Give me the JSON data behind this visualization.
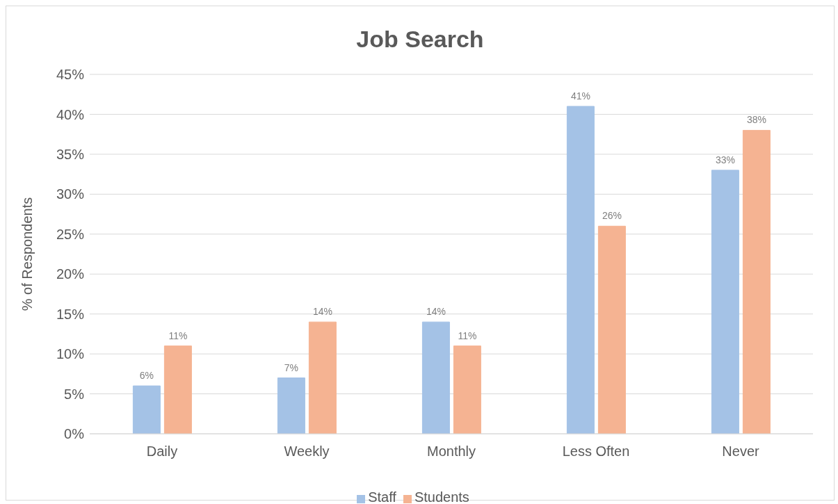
{
  "chart_data": {
    "type": "bar",
    "title": "Job Search",
    "ylabel": "% of Respondents",
    "categories": [
      "Daily",
      "Weekly",
      "Monthly",
      "Less Often",
      "Never"
    ],
    "series": [
      {
        "name": "Staff",
        "color": "#a4c2e6",
        "values": [
          6,
          7,
          14,
          41,
          33
        ],
        "value_labels": [
          "6%",
          "7%",
          "14%",
          "41%",
          "33%"
        ]
      },
      {
        "name": "Students",
        "color": "#f5b392",
        "values": [
          11,
          14,
          11,
          26,
          38
        ],
        "value_labels": [
          "11%",
          "14%",
          "11%",
          "26%",
          "38%"
        ]
      }
    ],
    "ylim": [
      0,
      45
    ],
    "yticks": [
      {
        "value": 0,
        "label": "0%"
      },
      {
        "value": 5,
        "label": "5%"
      },
      {
        "value": 10,
        "label": "10%"
      },
      {
        "value": 15,
        "label": "15%"
      },
      {
        "value": 20,
        "label": "20%"
      },
      {
        "value": 25,
        "label": "25%"
      },
      {
        "value": 30,
        "label": "30%"
      },
      {
        "value": 35,
        "label": "35%"
      },
      {
        "value": 40,
        "label": "40%"
      },
      {
        "value": 45,
        "label": "45%"
      }
    ],
    "grid": "y",
    "legend": "bottom"
  }
}
